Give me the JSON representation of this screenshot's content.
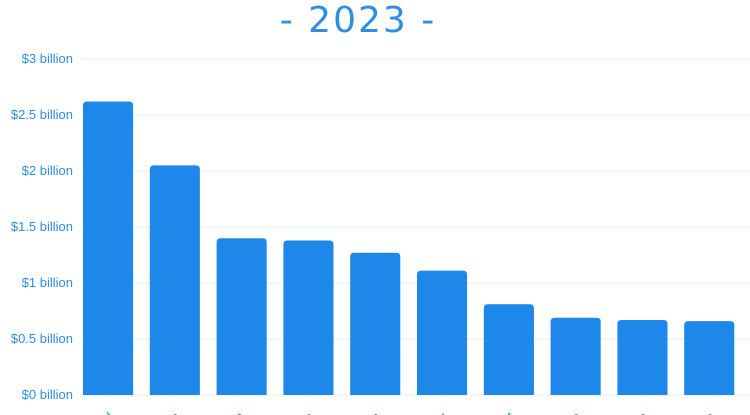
{
  "chart_data": {
    "type": "bar",
    "title": "- 2023 -",
    "xlabel": "",
    "ylabel": "",
    "ylim": [
      0,
      3
    ],
    "y_unit": "billion USD",
    "y_tick_labels": [
      "$0 billion",
      "$0.5 billion",
      "$1 billion",
      "$1.5 billion",
      "$2 billion",
      "$2.5 billion",
      "$3 billion"
    ],
    "y_ticks": [
      0,
      0.5,
      1,
      1.5,
      2,
      2.5,
      3
    ],
    "grid": true,
    "legend": "none",
    "categories": [
      "rd",
      "m",
      "A",
      "ia",
      "as",
      "rg",
      "st",
      "m",
      "m",
      "re"
    ],
    "values": [
      2.62,
      2.05,
      1.4,
      1.38,
      1.27,
      1.11,
      0.81,
      0.69,
      0.67,
      0.66
    ],
    "colors": {
      "bar": "#1e88ea",
      "text": "#2f8de4",
      "grid": "#e6eef7"
    }
  }
}
